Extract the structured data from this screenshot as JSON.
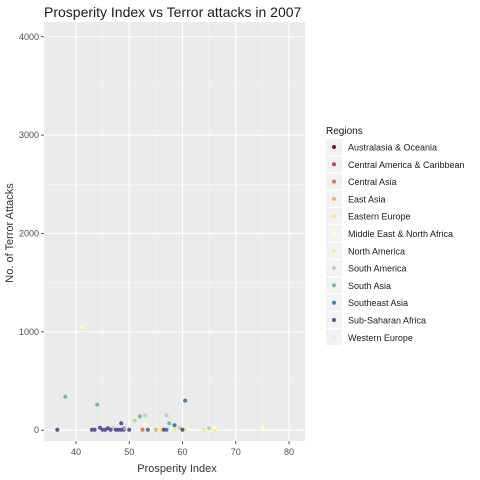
{
  "chart_data": {
    "type": "scatter",
    "title": "Prosperity Index vs Terror attacks in 2007",
    "xlabel": "Prosperity Index",
    "ylabel": "No. of Terror Attacks",
    "xlim": [
      34,
      83
    ],
    "ylim": [
      -110,
      4150
    ],
    "x_ticks": [
      40,
      50,
      60,
      70,
      80
    ],
    "y_ticks": [
      0,
      1000,
      2000,
      3000,
      4000
    ],
    "grid": true,
    "legend_position": "right",
    "legend_title": "Regions",
    "series": [
      {
        "name": "Australasia & Oceania",
        "color": "#9e0142",
        "points": []
      },
      {
        "name": "Central America & Caribbean",
        "color": "#d53e4f",
        "points": [
          [
            49,
            5
          ]
        ]
      },
      {
        "name": "Central Asia",
        "color": "#f46d43",
        "points": [
          [
            52.5,
            5
          ]
        ]
      },
      {
        "name": "East Asia",
        "color": "#fdae61",
        "points": [
          [
            55,
            5
          ]
        ]
      },
      {
        "name": "Eastern Europe",
        "color": "#fee08b",
        "points": [
          [
            53.5,
            5
          ],
          [
            56,
            5
          ],
          [
            58.5,
            5
          ],
          [
            59.5,
            30
          ],
          [
            64,
            5
          ],
          [
            66,
            5
          ]
        ]
      },
      {
        "name": "Middle East & North Africa",
        "color": "#ffffbf",
        "points": [
          [
            41,
            1050
          ],
          [
            51,
            120
          ],
          [
            53,
            60
          ],
          [
            54,
            15
          ],
          [
            57.5,
            70
          ],
          [
            58,
            15
          ],
          [
            61,
            10
          ],
          [
            66,
            25
          ],
          [
            75,
            25
          ]
        ]
      },
      {
        "name": "North America",
        "color": "#e6f598",
        "points": [
          [
            60.5,
            5
          ]
        ]
      },
      {
        "name": "South America",
        "color": "#abdda4",
        "points": [
          [
            47,
            20
          ],
          [
            51,
            100
          ],
          [
            53,
            150
          ],
          [
            57,
            150
          ],
          [
            59.5,
            20
          ],
          [
            65,
            20
          ]
        ]
      },
      {
        "name": "South Asia",
        "color": "#66c2a5",
        "points": [
          [
            38,
            340
          ],
          [
            44,
            260
          ],
          [
            49,
            20
          ],
          [
            52,
            140
          ],
          [
            57.5,
            70
          ]
        ]
      },
      {
        "name": "Southeast Asia",
        "color": "#3288bd",
        "points": [
          [
            60.5,
            300
          ],
          [
            58.5,
            50
          ],
          [
            57,
            5
          ],
          [
            53.5,
            5
          ]
        ]
      },
      {
        "name": "Sub-Saharan Africa",
        "color": "#5e4fa2",
        "points": [
          [
            36.5,
            5
          ],
          [
            43,
            5
          ],
          [
            43.5,
            5
          ],
          [
            44.5,
            25
          ],
          [
            45,
            5
          ],
          [
            45.5,
            5
          ],
          [
            46,
            20
          ],
          [
            46.5,
            5
          ],
          [
            47.5,
            5
          ],
          [
            48,
            5
          ],
          [
            48.5,
            70
          ],
          [
            48.5,
            5
          ],
          [
            50,
            5
          ],
          [
            56.5,
            5
          ],
          [
            60,
            5
          ]
        ]
      },
      {
        "name": "Western Europe",
        "color": "#ebebeb",
        "points": []
      }
    ]
  }
}
